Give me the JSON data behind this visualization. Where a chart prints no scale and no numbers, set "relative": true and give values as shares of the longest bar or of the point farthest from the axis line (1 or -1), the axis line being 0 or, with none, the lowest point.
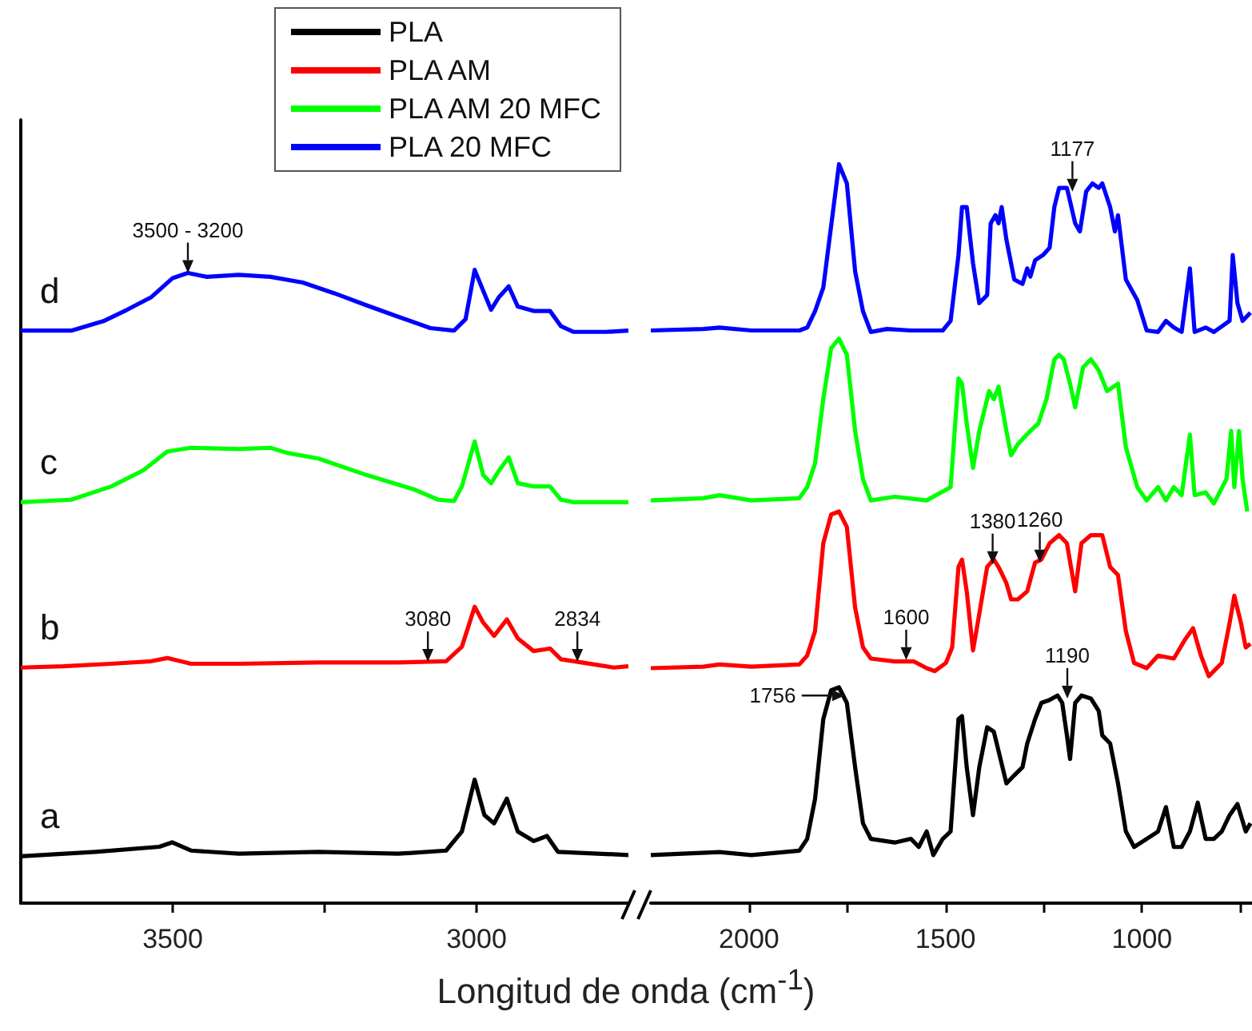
{
  "chart_data": [
    {
      "type": "line",
      "relative": true,
      "xlabel": "Longitud de onda (cm$^{-1}$)",
      "xlim": [
        3750,
        2750
      ],
      "xticks": [
        3500,
        {
          "value": 3250,
          "label": null
        },
        3000
      ],
      "tick_labels": "x",
      "legend": "top",
      "series": [
        {
          "name": "PLA",
          "color": "#000000",
          "x": [
            3750,
            3627,
            3522,
            3501,
            3470,
            3391,
            3260,
            3129,
            3050,
            3024,
            3003,
            2987,
            2971,
            2950,
            2932,
            2906,
            2884,
            2866,
            2750
          ],
          "values": [
            0.074,
            0.081,
            0.089,
            0.096,
            0.083,
            0.078,
            0.081,
            0.078,
            0.083,
            0.113,
            0.195,
            0.139,
            0.126,
            0.165,
            0.113,
            0.098,
            0.106,
            0.081,
            0.076
          ]
        },
        {
          "name": "PLA AM",
          "color": "#ff0000",
          "x": [
            3750,
            3680,
            3601,
            3535,
            3509,
            3470,
            3391,
            3260,
            3129,
            3050,
            3024,
            3003,
            2989,
            2971,
            2950,
            2932,
            2906,
            2879,
            2861,
            2827,
            2774,
            2750
          ],
          "values": [
            0.372,
            0.374,
            0.378,
            0.382,
            0.387,
            0.378,
            0.378,
            0.38,
            0.38,
            0.382,
            0.405,
            0.468,
            0.443,
            0.422,
            0.448,
            0.418,
            0.398,
            0.402,
            0.385,
            0.38,
            0.372,
            0.374
          ]
        },
        {
          "name": "PLA AM 20 MFC",
          "color": "#00ff00",
          "x": [
            3750,
            3667,
            3601,
            3549,
            3509,
            3470,
            3391,
            3339,
            3312,
            3260,
            3181,
            3102,
            3063,
            3037,
            3024,
            3003,
            2989,
            2976,
            2963,
            2947,
            2932,
            2906,
            2879,
            2861,
            2840,
            2750
          ],
          "values": [
            0.633,
            0.637,
            0.658,
            0.683,
            0.713,
            0.719,
            0.717,
            0.719,
            0.711,
            0.702,
            0.676,
            0.653,
            0.637,
            0.635,
            0.658,
            0.729,
            0.676,
            0.663,
            0.683,
            0.704,
            0.663,
            0.658,
            0.658,
            0.637,
            0.633,
            0.633
          ]
        },
        {
          "name": "PLA 20 MFC",
          "color": "#0000ff",
          "x": [
            3750,
            3667,
            3614,
            3575,
            3535,
            3500,
            3475,
            3444,
            3391,
            3339,
            3286,
            3234,
            3181,
            3129,
            3076,
            3037,
            3018,
            3003,
            2989,
            2976,
            2963,
            2947,
            2932,
            2906,
            2879,
            2861,
            2840,
            2787,
            2750
          ],
          "values": [
            0.904,
            0.904,
            0.919,
            0.937,
            0.957,
            0.987,
            0.995,
            0.989,
            0.992,
            0.989,
            0.98,
            0.963,
            0.944,
            0.926,
            0.908,
            0.904,
            0.922,
            1.0,
            0.967,
            0.937,
            0.957,
            0.974,
            0.942,
            0.935,
            0.935,
            0.911,
            0.902,
            0.902,
            0.904
          ]
        }
      ],
      "annotations": [
        "a",
        "b",
        "c",
        "d",
        {
          "text": "3500 - 3200",
          "x": 3475,
          "y": 0.995
        },
        {
          "text": "3080",
          "x": 3080,
          "y": 0.381
        },
        {
          "text": "2834",
          "x": 2834,
          "y": 0.381
        }
      ]
    },
    {
      "type": "line",
      "relative": true,
      "xlim": [
        2250,
        720
      ],
      "xticks": [
        2000,
        {
          "value": 1750,
          "label": null
        },
        1500,
        {
          "value": 1250,
          "label": null
        },
        1000,
        {
          "value": 750,
          "label": null
        }
      ],
      "tick_labels": "x",
      "series": [
        {
          "color": "#000000",
          "x": [
            2250,
            2075,
            1994,
            1872,
            1852,
            1832,
            1811,
            1791,
            1771,
            1751,
            1730,
            1710,
            1690,
            1629,
            1588,
            1568,
            1548,
            1531,
            1507,
            1487,
            1467,
            1458,
            1446,
            1430,
            1414,
            1394,
            1377,
            1365,
            1345,
            1325,
            1304,
            1292,
            1272,
            1256,
            1235,
            1215,
            1203,
            1191,
            1183,
            1170,
            1154,
            1130,
            1110,
            1101,
            1081,
            1061,
            1041,
            1020,
            988,
            959,
            939,
            919,
            899,
            878,
            858,
            838,
            817,
            797,
            777,
            757,
            736,
            724
          ],
          "values": [
            0.065,
            0.069,
            0.065,
            0.071,
            0.087,
            0.141,
            0.249,
            0.288,
            0.292,
            0.271,
            0.184,
            0.108,
            0.087,
            0.082,
            0.087,
            0.076,
            0.097,
            0.065,
            0.087,
            0.097,
            0.249,
            0.253,
            0.184,
            0.119,
            0.184,
            0.238,
            0.232,
            0.206,
            0.162,
            0.173,
            0.184,
            0.216,
            0.249,
            0.271,
            0.275,
            0.281,
            0.271,
            0.227,
            0.195,
            0.271,
            0.281,
            0.277,
            0.26,
            0.227,
            0.216,
            0.162,
            0.097,
            0.076,
            0.087,
            0.097,
            0.13,
            0.076,
            0.076,
            0.097,
            0.136,
            0.087,
            0.087,
            0.097,
            0.119,
            0.134,
            0.097,
            0.108
          ]
        },
        {
          "color": "#ff0000",
          "x": [
            2250,
            2116,
            2075,
            1994,
            1872,
            1852,
            1832,
            1811,
            1791,
            1771,
            1751,
            1730,
            1710,
            1690,
            1629,
            1580,
            1548,
            1527,
            1499,
            1483,
            1467,
            1458,
            1446,
            1430,
            1418,
            1394,
            1377,
            1365,
            1345,
            1333,
            1316,
            1292,
            1272,
            1256,
            1235,
            1211,
            1191,
            1170,
            1154,
            1130,
            1101,
            1081,
            1061,
            1041,
            1020,
            988,
            959,
            919,
            890,
            870,
            850,
            830,
            797,
            777,
            765,
            748,
            736,
            724
          ],
          "values": [
            0.318,
            0.32,
            0.323,
            0.32,
            0.323,
            0.335,
            0.368,
            0.487,
            0.526,
            0.53,
            0.509,
            0.4,
            0.346,
            0.331,
            0.327,
            0.327,
            0.318,
            0.314,
            0.325,
            0.346,
            0.455,
            0.465,
            0.422,
            0.342,
            0.379,
            0.455,
            0.465,
            0.455,
            0.433,
            0.411,
            0.411,
            0.422,
            0.461,
            0.465,
            0.487,
            0.498,
            0.487,
            0.422,
            0.487,
            0.498,
            0.498,
            0.455,
            0.444,
            0.368,
            0.325,
            0.318,
            0.335,
            0.331,
            0.357,
            0.372,
            0.335,
            0.307,
            0.325,
            0.379,
            0.416,
            0.379,
            0.346,
            0.351
          ]
        },
        {
          "color": "#00ff00",
          "x": [
            2250,
            2116,
            2075,
            1994,
            1872,
            1852,
            1832,
            1811,
            1791,
            1771,
            1751,
            1730,
            1710,
            1690,
            1629,
            1548,
            1487,
            1467,
            1458,
            1446,
            1430,
            1414,
            1389,
            1377,
            1365,
            1345,
            1333,
            1316,
            1304,
            1284,
            1264,
            1243,
            1223,
            1211,
            1199,
            1183,
            1170,
            1150,
            1130,
            1110,
            1089,
            1061,
            1041,
            1012,
            988,
            959,
            939,
            919,
            899,
            878,
            866,
            838,
            817,
            785,
            773,
            765,
            753,
            744,
            732
          ],
          "values": [
            0.545,
            0.548,
            0.552,
            0.545,
            0.548,
            0.563,
            0.595,
            0.682,
            0.751,
            0.764,
            0.742,
            0.639,
            0.574,
            0.545,
            0.55,
            0.545,
            0.563,
            0.71,
            0.703,
            0.649,
            0.589,
            0.639,
            0.693,
            0.682,
            0.699,
            0.639,
            0.606,
            0.621,
            0.628,
            0.639,
            0.649,
            0.682,
            0.736,
            0.742,
            0.736,
            0.703,
            0.671,
            0.725,
            0.736,
            0.721,
            0.693,
            0.703,
            0.617,
            0.563,
            0.545,
            0.563,
            0.545,
            0.563,
            0.552,
            0.634,
            0.552,
            0.556,
            0.541,
            0.574,
            0.639,
            0.563,
            0.639,
            0.574,
            0.53
          ]
        },
        {
          "color": "#0000ff",
          "x": [
            2250,
            2116,
            2075,
            1994,
            1872,
            1852,
            1832,
            1811,
            1771,
            1751,
            1730,
            1710,
            1690,
            1649,
            1588,
            1507,
            1487,
            1467,
            1458,
            1446,
            1430,
            1414,
            1394,
            1385,
            1373,
            1365,
            1357,
            1345,
            1325,
            1304,
            1292,
            1284,
            1272,
            1252,
            1235,
            1223,
            1211,
            1191,
            1170,
            1158,
            1142,
            1126,
            1110,
            1101,
            1081,
            1069,
            1061,
            1041,
            1012,
            988,
            959,
            939,
            919,
            899,
            878,
            866,
            838,
            817,
            777,
            769,
            757,
            744,
            724
          ],
          "values": [
            0.775,
            0.777,
            0.779,
            0.775,
            0.775,
            0.779,
            0.801,
            0.833,
            1.0,
            0.974,
            0.855,
            0.801,
            0.773,
            0.777,
            0.775,
            0.775,
            0.788,
            0.877,
            0.942,
            0.942,
            0.866,
            0.812,
            0.823,
            0.92,
            0.931,
            0.92,
            0.942,
            0.898,
            0.844,
            0.838,
            0.859,
            0.848,
            0.87,
            0.877,
            0.887,
            0.942,
            0.968,
            0.968,
            0.92,
            0.909,
            0.963,
            0.974,
            0.968,
            0.974,
            0.942,
            0.909,
            0.931,
            0.844,
            0.816,
            0.775,
            0.773,
            0.788,
            0.779,
            0.773,
            0.859,
            0.773,
            0.779,
            0.773,
            0.788,
            0.877,
            0.812,
            0.788,
            0.799
          ]
        }
      ],
      "annotations": [
        {
          "text": "1177",
          "x": 1177,
          "y": 0.963
        },
        {
          "text": "1380",
          "x": 1380,
          "y": 0.459
        },
        {
          "text": "1260",
          "x": 1260,
          "y": 0.461
        },
        {
          "text": "1600",
          "x": 1600,
          "y": 0.329
        },
        {
          "text": "1756",
          "x": 1756,
          "y": 0.281
        },
        {
          "text": "1190",
          "x": 1190,
          "y": 0.277
        }
      ]
    }
  ]
}
